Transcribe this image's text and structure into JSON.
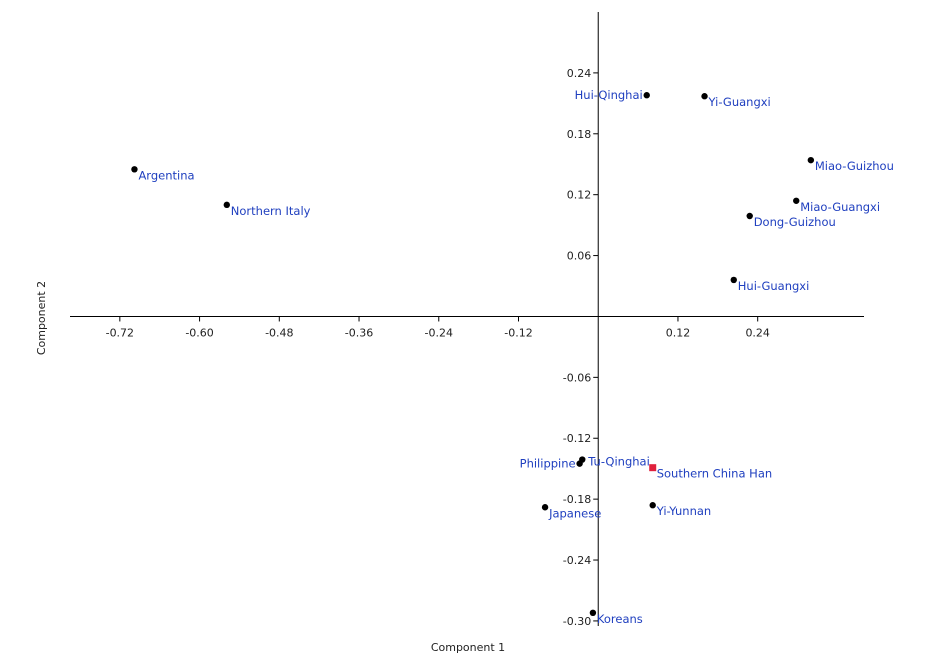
{
  "chart_data": {
    "type": "scatter",
    "title": "",
    "xlabel": "Component 1",
    "ylabel": "Component 2",
    "xlim": [
      -0.795,
      0.4
    ],
    "ylim": [
      -0.305,
      0.3
    ],
    "x_ticks": [
      -0.72,
      -0.6,
      -0.48,
      -0.36,
      -0.24,
      -0.12,
      0.12,
      0.24
    ],
    "x_tick_labels": [
      "-0.72",
      "-0.60",
      "-0.48",
      "-0.36",
      "-0.24",
      "-0.12",
      "0.12",
      "0.24"
    ],
    "y_ticks": [
      0.24,
      0.18,
      0.12,
      0.06,
      -0.06,
      -0.12,
      -0.18,
      -0.24,
      -0.3
    ],
    "y_tick_labels": [
      "0.24",
      "0.18",
      "0.12",
      "0.06",
      "-0.06",
      "-0.12",
      "-0.18",
      "-0.24",
      "-0.30"
    ],
    "grid": false,
    "points": [
      {
        "label": "Argentina",
        "x": -0.698,
        "y": 0.145,
        "marker": "circle",
        "color": "#000000",
        "label_pos": "below-right"
      },
      {
        "label": "Northern Italy",
        "x": -0.559,
        "y": 0.11,
        "marker": "circle",
        "color": "#000000",
        "label_pos": "below-right"
      },
      {
        "label": "Hui-Qinghai",
        "x": 0.073,
        "y": 0.218,
        "marker": "circle",
        "color": "#000000",
        "label_pos": "left"
      },
      {
        "label": "Yi-Guangxi",
        "x": 0.16,
        "y": 0.217,
        "marker": "circle",
        "color": "#000000",
        "label_pos": "below-right"
      },
      {
        "label": "Miao-Guizhou",
        "x": 0.32,
        "y": 0.154,
        "marker": "circle",
        "color": "#000000",
        "label_pos": "below-right"
      },
      {
        "label": "Miao-Guangxi",
        "x": 0.298,
        "y": 0.114,
        "marker": "circle",
        "color": "#000000",
        "label_pos": "below-right"
      },
      {
        "label": "Dong-Guizhou",
        "x": 0.228,
        "y": 0.099,
        "marker": "circle",
        "color": "#000000",
        "label_pos": "below-right"
      },
      {
        "label": "Hui-Guangxi",
        "x": 0.204,
        "y": 0.036,
        "marker": "circle",
        "color": "#000000",
        "label_pos": "below-right"
      },
      {
        "label": "Philippine",
        "x": -0.028,
        "y": -0.145,
        "marker": "circle",
        "color": "#000000",
        "label_pos": "left"
      },
      {
        "label": "Tu-Qinghai",
        "x": -0.024,
        "y": -0.141,
        "marker": "circle",
        "color": "#000000",
        "label_pos": "right"
      },
      {
        "label": "Southern China Han",
        "x": 0.082,
        "y": -0.149,
        "marker": "square",
        "color": "#e0203c",
        "label_pos": "below-right"
      },
      {
        "label": "Japanese",
        "x": -0.08,
        "y": -0.188,
        "marker": "circle",
        "color": "#000000",
        "label_pos": "below-right"
      },
      {
        "label": "Yi-Yunnan",
        "x": 0.082,
        "y": -0.186,
        "marker": "circle",
        "color": "#000000",
        "label_pos": "below-right"
      },
      {
        "label": "Koreans",
        "x": -0.008,
        "y": -0.292,
        "marker": "circle",
        "color": "#000000",
        "label_pos": "below-right"
      }
    ]
  }
}
